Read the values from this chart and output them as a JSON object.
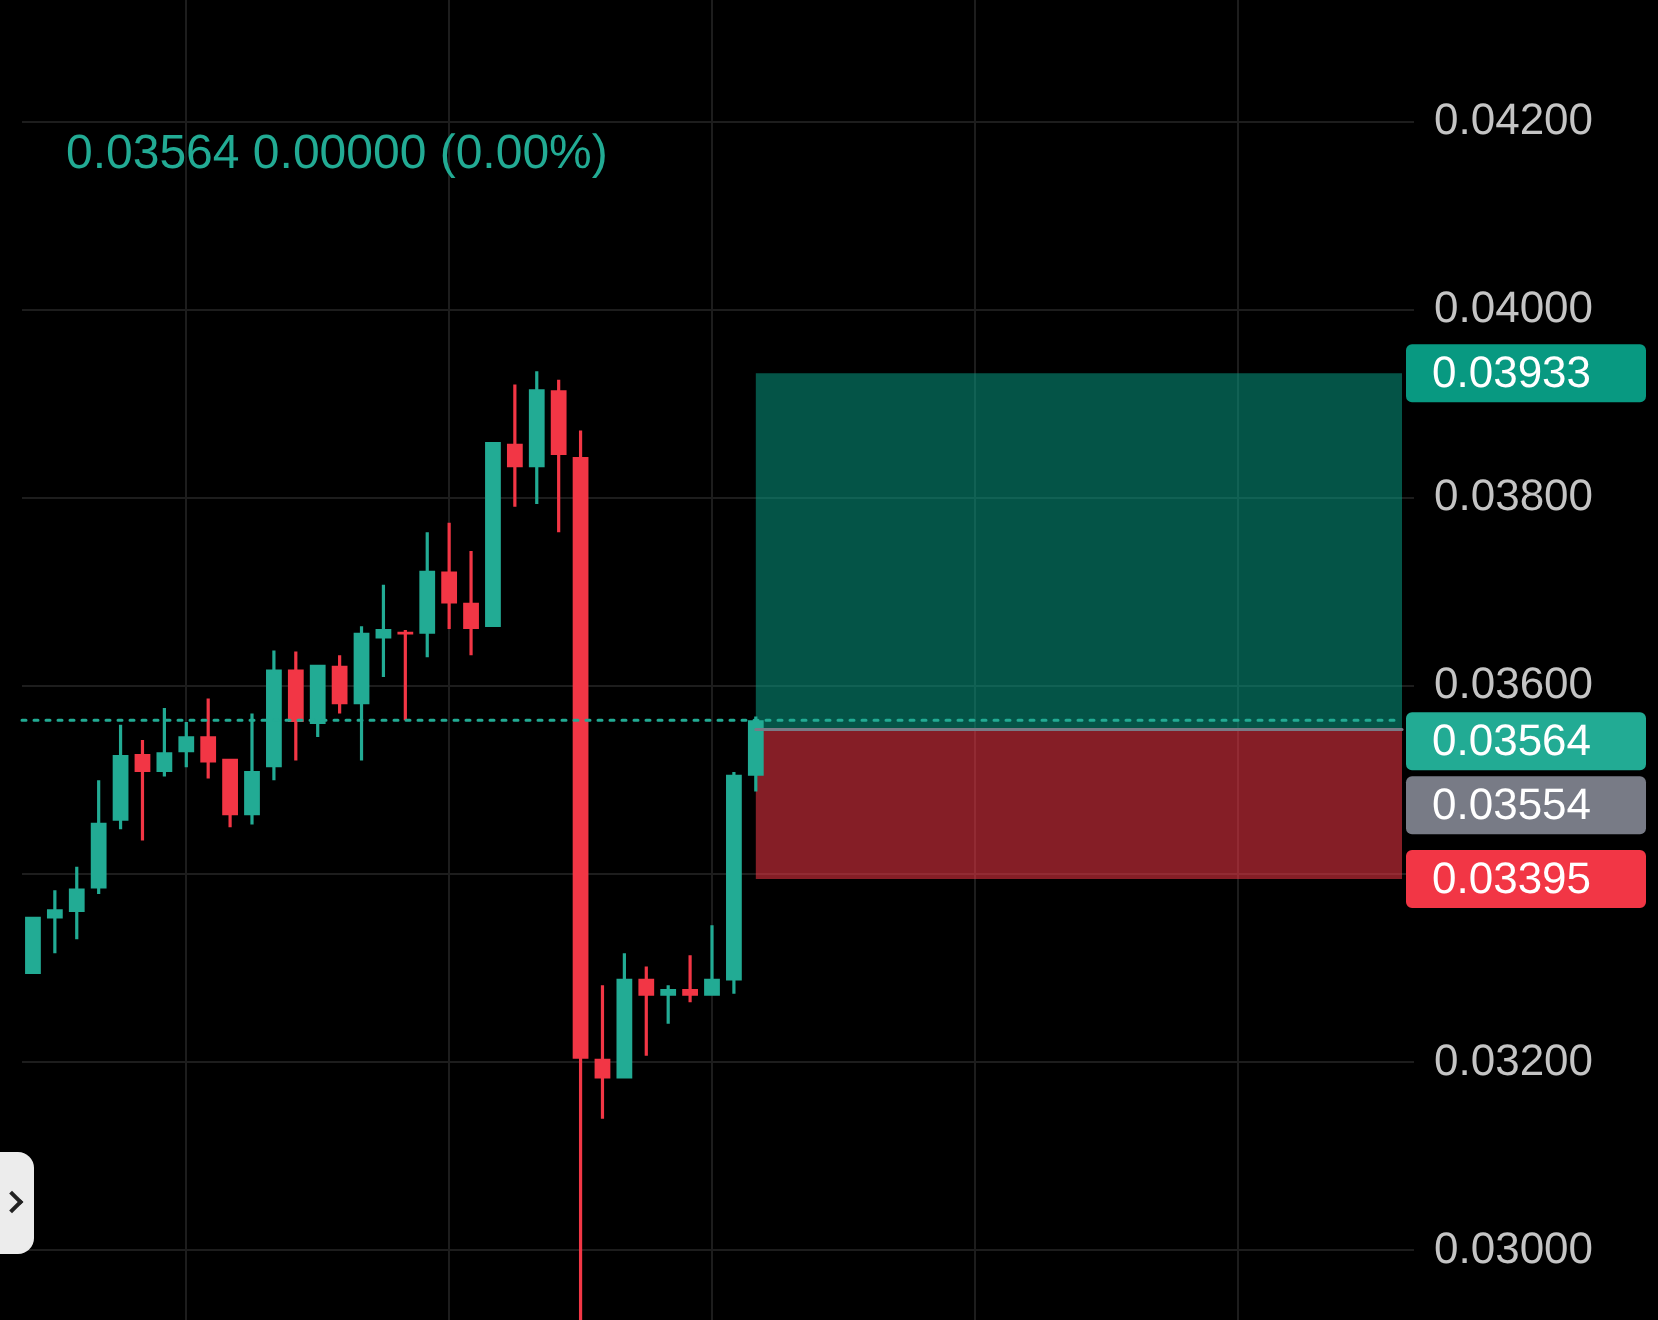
{
  "chart_data": {
    "type": "candlestick",
    "subtitle": "0.03564 0.00000 (0.00%)",
    "categories": [
      null,
      null,
      null,
      null,
      null,
      null,
      null,
      null,
      null,
      null,
      null,
      null,
      null,
      null,
      null,
      null,
      null,
      null,
      null,
      null,
      null,
      null,
      null,
      null,
      null,
      null,
      null,
      null,
      null,
      null,
      null,
      null,
      null,
      null,
      null,
      null,
      null,
      null,
      null,
      null,
      null,
      null,
      null,
      null,
      null,
      null,
      null,
      null,
      null,
      null,
      null,
      null,
      null,
      null,
      null,
      null,
      null,
      null,
      null,
      null,
      null,
      null,
      null
    ],
    "ohlc": [
      [
        0.03294,
        0.03355,
        0.03294,
        0.03355
      ],
      [
        0.03353,
        0.03383,
        0.03316,
        0.03363
      ],
      [
        0.0336,
        0.03408,
        0.03331,
        0.03385
      ],
      [
        0.03385,
        0.035,
        0.03379,
        0.03455
      ],
      [
        0.03457,
        0.03559,
        0.03448,
        0.03527
      ],
      [
        0.03528,
        0.03543,
        0.03436,
        0.03509
      ],
      [
        0.03509,
        0.03577,
        0.03504,
        0.0353
      ],
      [
        0.0353,
        0.03562,
        0.03514,
        0.03547
      ],
      [
        0.03547,
        0.03587,
        0.03502,
        0.03519
      ],
      [
        0.03523,
        0.03523,
        0.0345,
        0.03463
      ],
      [
        0.03463,
        0.03571,
        0.03453,
        0.0351
      ],
      [
        0.03514,
        0.03638,
        0.035,
        0.03618
      ],
      [
        0.03618,
        0.03637,
        0.03521,
        0.03562
      ],
      [
        0.0356,
        0.03623,
        0.03546,
        0.03623
      ],
      [
        0.03622,
        0.03633,
        0.03571,
        0.03581
      ],
      [
        0.03581,
        0.03664,
        0.03521,
        0.03657
      ],
      [
        0.03651,
        0.03708,
        0.0361,
        0.03661
      ],
      [
        0.03658,
        0.0366,
        0.03564,
        0.03655
      ],
      [
        0.03656,
        0.03764,
        0.03631,
        0.03723
      ],
      [
        0.03722,
        0.03774,
        0.03661,
        0.03688
      ],
      [
        0.03689,
        0.03744,
        0.03633,
        0.03661
      ],
      [
        0.03663,
        0.0386,
        0.03663,
        0.0386
      ],
      [
        0.03858,
        0.03921,
        0.03791,
        0.03833
      ],
      [
        0.03833,
        0.03935,
        0.03794,
        0.03916
      ],
      [
        0.03915,
        0.03926,
        0.03764,
        0.03846
      ],
      [
        0.03844,
        0.03872,
        0.02926,
        0.03204
      ],
      [
        0.03204,
        0.03282,
        0.0314,
        0.03183
      ],
      [
        0.03183,
        0.03316,
        0.03183,
        0.03289
      ],
      [
        0.03289,
        0.03302,
        0.03207,
        0.03271
      ],
      [
        0.03271,
        0.03282,
        0.03241,
        0.03278
      ],
      [
        0.03278,
        0.03314,
        0.03264,
        0.03271
      ],
      [
        0.03271,
        0.03346,
        0.03271,
        0.03289
      ],
      [
        0.03287,
        0.03509,
        0.03273,
        0.03506
      ],
      [
        0.03505,
        0.03568,
        0.03488,
        0.03564
      ],
      null,
      null,
      null,
      null,
      null,
      null,
      null,
      null,
      null,
      null,
      null,
      null,
      null,
      null,
      null,
      null,
      null,
      null,
      null,
      null,
      null,
      null,
      null,
      null,
      null,
      null,
      null,
      null,
      null
    ],
    "colors": [
      "#22ab94",
      "#22ab94",
      "#22ab94",
      "#22ab94",
      "#22ab94",
      "#f23645",
      "#22ab94",
      "#22ab94",
      "#f23645",
      "#f23645",
      "#22ab94",
      "#22ab94",
      "#f23645",
      "#22ab94",
      "#f23645",
      "#22ab94",
      "#22ab94",
      "#f23645",
      "#22ab94",
      "#f23645",
      "#f23645",
      "#22ab94",
      "#f23645",
      "#22ab94",
      "#f23645",
      "#f23645",
      "#f23645",
      "#22ab94",
      "#f23645",
      "#22ab94",
      "#f23645",
      "#22ab94",
      "#22ab94",
      "#22ab94",
      null,
      null,
      null,
      null,
      null,
      null,
      null,
      null,
      null,
      null,
      null,
      null,
      null,
      null,
      null,
      null,
      null,
      null,
      null,
      null,
      null,
      null,
      null,
      null,
      null,
      null,
      null,
      null,
      null
    ],
    "ylim": [
      0.02926,
      0.0433
    ],
    "yticks": [
      {
        "value": 0.03,
        "label": "0.03000"
      },
      {
        "value": 0.032,
        "label": "0.03200"
      },
      {
        "value": 0.034,
        "label": null
      },
      {
        "value": 0.036,
        "label": "0.03600"
      },
      {
        "value": 0.038,
        "label": "0.03800"
      },
      {
        "value": 0.04,
        "label": "0.04000"
      },
      {
        "value": 0.042,
        "label": "0.04200"
      }
    ],
    "grid": true,
    "tick_labels": "y",
    "bands": [
      {
        "axis": "y",
        "from": 0.03554,
        "to": 0.03933,
        "label": "0.03933",
        "color": "#089981"
      },
      {
        "axis": "y",
        "from": 0.03395,
        "to": 0.03554,
        "label": "0.03395",
        "color": "#f23645"
      }
    ],
    "ref_lines": [
      {
        "axis": "y",
        "value": 0.03564,
        "label": "0.03564",
        "color": "#22ab94",
        "line_style": "dotted"
      },
      {
        "axis": "y",
        "value": 0.03554,
        "label": "0.03554",
        "color": "#787b86",
        "line_style": "solid"
      }
    ]
  }
}
